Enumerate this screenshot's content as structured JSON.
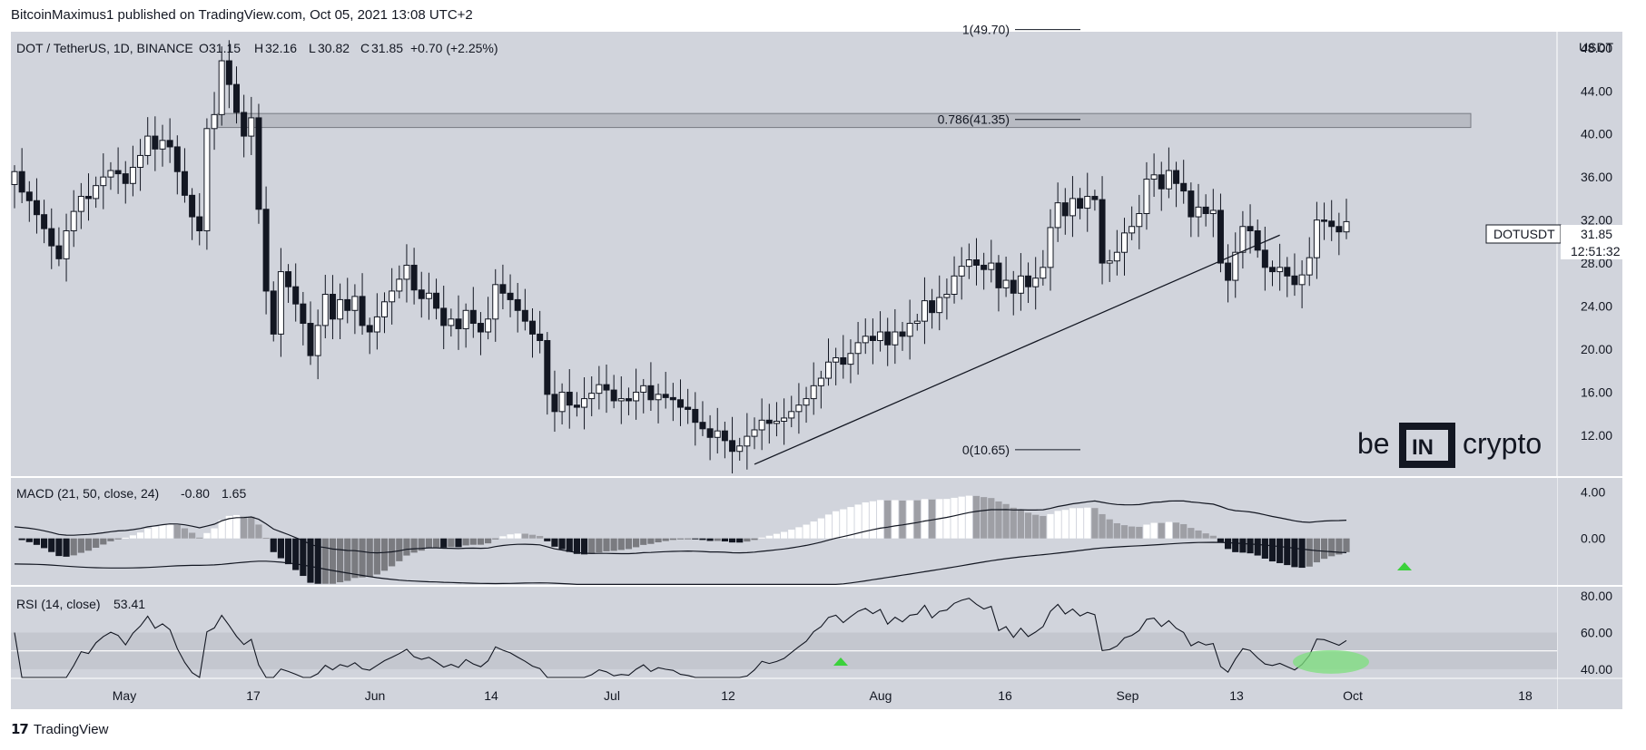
{
  "header": {
    "published": "BitcoinMaximus1 published on TradingView.com, Oct 05, 2021 13:08 UTC+2"
  },
  "footer": {
    "logo_text": "TradingView"
  },
  "watermark": {
    "left": "be",
    "mid": "IN",
    "right": "crypto"
  },
  "legend": {
    "symbol": "DOT / TetherUS, 1D, BINANCE",
    "o_label": "O",
    "o_value": "31.15",
    "h_label": "H",
    "h_value": "32.16",
    "l_label": "L",
    "l_value": "30.82",
    "c_label": "C",
    "c_value": "31.85",
    "change": "+0.70 (+2.25%)"
  },
  "price_tag": {
    "symbol": "DOTUSDT",
    "price": "31.85",
    "countdown": "12:51:32"
  },
  "macd": {
    "label": "MACD (21, 50, close, 24)",
    "v1": "-0.80",
    "v2": "1.65"
  },
  "rsi": {
    "label": "RSI (14, close)",
    "value": "53.41"
  },
  "chart_data": [
    {
      "type": "candlestick",
      "currency": "USDT",
      "y_ticks": [
        "48.00",
        "44.00",
        "40.00",
        "36.00",
        "32.00",
        "28.00",
        "24.00",
        "20.00",
        "16.00",
        "12.00"
      ],
      "ylim": [
        8.2,
        49.5
      ],
      "x_ticks": [
        "May",
        "17",
        "Jun",
        "14",
        "Jul",
        "12",
        "Aug",
        "16",
        "Sep",
        "13",
        "Oct",
        "18"
      ],
      "fib_levels": [
        {
          "label": "1(49.70)",
          "value": 49.7
        },
        {
          "label": "0.786(41.35)",
          "value": 41.35
        },
        {
          "label": "0(10.65)",
          "value": 10.65
        }
      ],
      "resistance_zone": [
        40.6,
        41.9
      ],
      "trendline": [
        {
          "x": "Jul 20",
          "y": 9.3
        },
        {
          "x": "Oct 10",
          "y": 30.6
        }
      ],
      "closes": [
        36.5,
        34.6,
        33.8,
        32.5,
        31.2,
        29.6,
        28.4,
        31.0,
        32.8,
        34.2,
        34.0,
        35.2,
        36.0,
        36.6,
        36.3,
        35.4,
        36.9,
        38.0,
        39.8,
        38.6,
        39.4,
        38.8,
        36.5,
        34.3,
        32.3,
        31.0,
        40.5,
        41.8,
        46.8,
        44.6,
        42.0,
        39.8,
        41.5,
        33.0,
        25.4,
        21.4,
        27.2,
        25.8,
        24.2,
        22.4,
        19.4,
        22.2,
        25.1,
        22.8,
        24.6,
        23.6,
        24.9,
        22.2,
        21.6,
        23.0,
        24.4,
        25.4,
        26.5,
        27.8,
        25.5,
        24.7,
        25.2,
        23.8,
        22.2,
        22.8,
        21.9,
        23.6,
        22.4,
        21.6,
        22.8,
        26.0,
        25.2,
        24.6,
        23.6,
        22.6,
        21.4,
        20.8,
        15.8,
        14.2,
        16.0,
        14.8,
        14.6,
        15.4,
        15.9,
        16.7,
        16.2,
        15.2,
        15.4,
        15.2,
        16.0,
        16.6,
        15.3,
        15.8,
        15.5,
        15.3,
        14.6,
        14.4,
        13.2,
        12.6,
        11.8,
        12.4,
        11.5,
        10.5,
        11.0,
        11.9,
        12.5,
        13.4,
        13.1,
        13.3,
        13.6,
        14.2,
        14.8,
        15.4,
        16.6,
        17.3,
        18.8,
        19.2,
        18.6,
        19.6,
        20.6,
        21.2,
        20.8,
        21.6,
        20.4,
        21.6,
        21.2,
        22.4,
        22.6,
        24.5,
        23.4,
        24.8,
        25.1,
        26.8,
        27.7,
        28.3,
        27.8,
        27.4,
        28.0,
        25.7,
        26.4,
        25.2,
        26.8,
        25.8,
        26.6,
        27.6,
        31.3,
        33.6,
        32.4,
        34.0,
        33.1,
        34.2,
        33.9,
        28.0,
        28.2,
        29.0,
        30.8,
        31.4,
        32.6,
        35.8,
        36.2,
        34.9,
        36.6,
        35.4,
        34.7,
        32.3,
        33.2,
        32.6,
        32.9,
        28.0,
        26.4,
        29.0,
        31.4,
        31.0,
        29.2,
        27.6,
        27.2,
        27.6,
        26.8,
        26.0,
        26.9,
        28.5,
        32.0,
        31.9,
        31.4,
        30.9,
        31.85
      ]
    },
    {
      "type": "macd_histogram",
      "y_ticks": [
        "4.00",
        "0.00"
      ],
      "ylim": [
        -4.0,
        5.2
      ]
    },
    {
      "type": "rsi",
      "y_ticks": [
        "80.00",
        "60.00",
        "40.00"
      ],
      "ylim": [
        35,
        85
      ],
      "band": [
        40,
        60
      ]
    }
  ]
}
